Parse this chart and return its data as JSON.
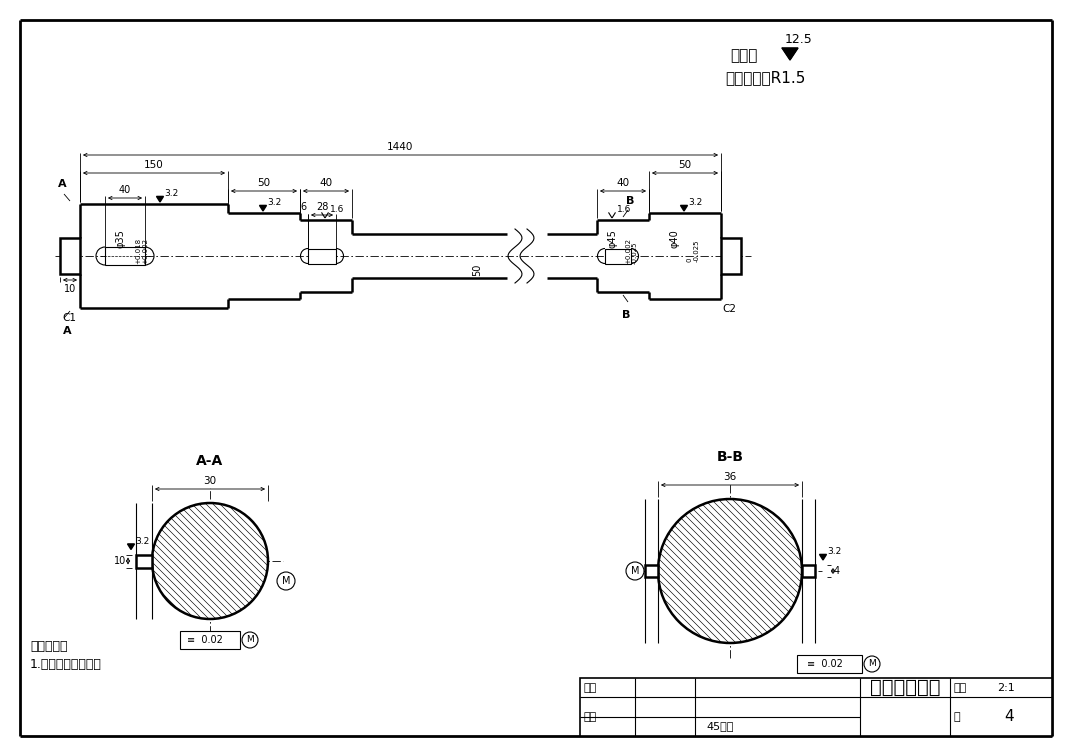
{
  "bg_color": "#d0d0d0",
  "drawing_bg": "#ffffff",
  "line_color": "#000000",
  "title": "上料机动力轴",
  "scale": "2:1",
  "fig_num": "4",
  "material": "45号钢",
  "drawer_label": "制图",
  "checker_label": "审核",
  "note1": "其余：",
  "note2": "未注圆角：R1.5",
  "tech_req1": "技术要求：",
  "tech_req2": "1.材料进行调制处理",
  "roughness_val": "12.5",
  "bili_label": "比例",
  "tu_label": "图",
  "section_aa": "A-A",
  "section_bb": "B-B"
}
